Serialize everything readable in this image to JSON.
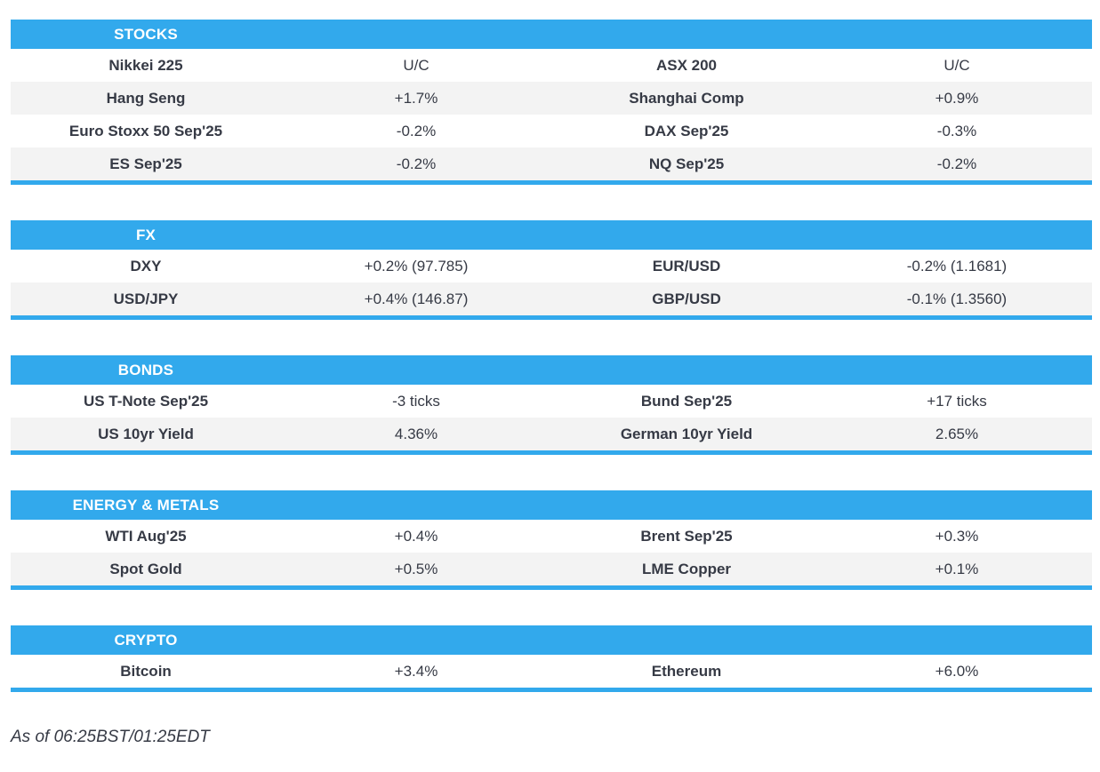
{
  "colors": {
    "accent": "#32a9ec",
    "stripe": "#f3f3f3",
    "text": "#363a45"
  },
  "sections": [
    {
      "title": "STOCKS",
      "rows": [
        {
          "left_label": "Nikkei 225",
          "left_value": "U/C",
          "right_label": "ASX 200",
          "right_value": "U/C"
        },
        {
          "left_label": "Hang Seng",
          "left_value": "+1.7%",
          "right_label": "Shanghai Comp",
          "right_value": "+0.9%"
        },
        {
          "left_label": "Euro Stoxx 50 Sep'25",
          "left_value": "-0.2%",
          "right_label": "DAX Sep'25",
          "right_value": "-0.3%"
        },
        {
          "left_label": "ES Sep'25",
          "left_value": "-0.2%",
          "right_label": "NQ Sep'25",
          "right_value": "-0.2%"
        }
      ]
    },
    {
      "title": "FX",
      "rows": [
        {
          "left_label": "DXY",
          "left_value": "+0.2% (97.785)",
          "right_label": "EUR/USD",
          "right_value": "-0.2% (1.1681)"
        },
        {
          "left_label": "USD/JPY",
          "left_value": "+0.4% (146.87)",
          "right_label": "GBP/USD",
          "right_value": "-0.1% (1.3560)"
        }
      ]
    },
    {
      "title": "BONDS",
      "rows": [
        {
          "left_label": "US T-Note Sep'25",
          "left_value": "-3 ticks",
          "right_label": "Bund Sep'25",
          "right_value": "+17 ticks"
        },
        {
          "left_label": "US 10yr Yield",
          "left_value": "4.36%",
          "right_label": "German 10yr Yield",
          "right_value": "2.65%"
        }
      ]
    },
    {
      "title": "ENERGY & METALS",
      "rows": [
        {
          "left_label": "WTI Aug'25",
          "left_value": "+0.4%",
          "right_label": "Brent Sep'25",
          "right_value": "+0.3%"
        },
        {
          "left_label": "Spot Gold",
          "left_value": "+0.5%",
          "right_label": "LME Copper",
          "right_value": "+0.1%"
        }
      ]
    },
    {
      "title": "CRYPTO",
      "rows": [
        {
          "left_label": "Bitcoin",
          "left_value": "+3.4%",
          "right_label": "Ethereum",
          "right_value": "+6.0%"
        }
      ]
    }
  ],
  "footer": {
    "as_of": "As of 06:25BST/01:25EDT"
  }
}
